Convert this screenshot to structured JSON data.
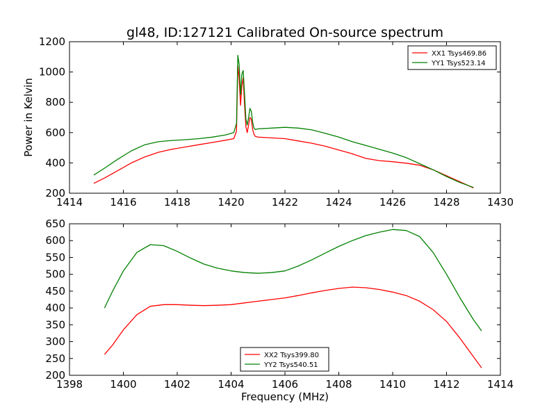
{
  "figure_title": "gl48, ID:127121 Calibrated On-source spectrum",
  "chart_data": [
    {
      "type": "line",
      "title": "gl48, ID:127121 Calibrated On-source spectrum",
      "xlabel": "",
      "ylabel": "Power in Kelvin",
      "xlim": [
        1414,
        1430
      ],
      "ylim": [
        200,
        1200
      ],
      "xticks": [
        1414,
        1416,
        1418,
        1420,
        1422,
        1424,
        1426,
        1428,
        1430
      ],
      "yticks": [
        200,
        400,
        600,
        800,
        1000,
        1200
      ],
      "legend_position": "top-right",
      "series": [
        {
          "name": "XX1 Tsys469.86",
          "color": "#ff0000",
          "x": [
            1414.9,
            1415.3,
            1415.8,
            1416.3,
            1416.8,
            1417.3,
            1417.8,
            1418.3,
            1418.8,
            1419.3,
            1419.8,
            1420.1,
            1420.2,
            1420.25,
            1420.3,
            1420.35,
            1420.4,
            1420.45,
            1420.5,
            1420.55,
            1420.6,
            1420.65,
            1420.7,
            1420.75,
            1420.8,
            1420.85,
            1420.9,
            1421.0,
            1421.5,
            1422.0,
            1422.5,
            1423.0,
            1423.5,
            1424.0,
            1424.5,
            1425.0,
            1425.5,
            1426.0,
            1426.5,
            1427.0,
            1427.5,
            1428.0,
            1428.5,
            1429.0
          ],
          "values": [
            265,
            300,
            350,
            400,
            440,
            470,
            490,
            505,
            520,
            535,
            550,
            560,
            610,
            1040,
            960,
            780,
            910,
            960,
            780,
            640,
            600,
            650,
            700,
            690,
            620,
            590,
            575,
            570,
            565,
            560,
            545,
            530,
            510,
            485,
            460,
            430,
            415,
            408,
            398,
            385,
            355,
            315,
            275,
            235
          ]
        },
        {
          "name": "YY1 Tsys523.14",
          "color": "#008000",
          "x": [
            1414.9,
            1415.3,
            1415.8,
            1416.3,
            1416.8,
            1417.3,
            1417.8,
            1418.3,
            1418.8,
            1419.3,
            1419.8,
            1420.1,
            1420.2,
            1420.25,
            1420.3,
            1420.35,
            1420.4,
            1420.45,
            1420.5,
            1420.55,
            1420.6,
            1420.65,
            1420.7,
            1420.75,
            1420.8,
            1420.85,
            1420.9,
            1421.0,
            1421.5,
            1422.0,
            1422.5,
            1423.0,
            1423.5,
            1424.0,
            1424.5,
            1425.0,
            1425.5,
            1426.0,
            1426.5,
            1427.0,
            1427.5,
            1428.0,
            1428.5,
            1429.0
          ],
          "values": [
            320,
            365,
            425,
            480,
            520,
            540,
            548,
            553,
            560,
            570,
            585,
            600,
            660,
            1110,
            1050,
            850,
            985,
            1010,
            850,
            690,
            650,
            700,
            760,
            740,
            670,
            630,
            620,
            625,
            630,
            635,
            630,
            618,
            595,
            570,
            540,
            515,
            490,
            465,
            435,
            395,
            355,
            310,
            270,
            238
          ]
        }
      ]
    },
    {
      "type": "line",
      "title": "",
      "xlabel": "Frequency (MHz)",
      "ylabel": "",
      "xlim": [
        1398,
        1414
      ],
      "ylim": [
        200,
        650
      ],
      "xticks": [
        1398,
        1400,
        1402,
        1404,
        1406,
        1408,
        1410,
        1412,
        1414
      ],
      "yticks": [
        200,
        250,
        300,
        350,
        400,
        450,
        500,
        550,
        600,
        650
      ],
      "legend_position": "lower-center",
      "series": [
        {
          "name": "XX2 Tsys399.80",
          "color": "#ff0000",
          "x": [
            1399.3,
            1399.6,
            1400.0,
            1400.5,
            1401.0,
            1401.5,
            1402.0,
            1402.5,
            1403.0,
            1403.5,
            1404.0,
            1404.5,
            1405.0,
            1405.5,
            1406.0,
            1406.5,
            1407.0,
            1407.5,
            1408.0,
            1408.5,
            1409.0,
            1409.5,
            1410.0,
            1410.5,
            1411.0,
            1411.5,
            1412.0,
            1412.5,
            1413.0,
            1413.3
          ],
          "values": [
            262,
            290,
            335,
            380,
            405,
            410,
            410,
            408,
            407,
            408,
            410,
            415,
            420,
            425,
            430,
            437,
            445,
            452,
            458,
            462,
            460,
            455,
            447,
            437,
            420,
            395,
            360,
            310,
            255,
            222
          ]
        },
        {
          "name": "YY2 Tsys540.51",
          "color": "#008000",
          "x": [
            1399.3,
            1399.6,
            1400.0,
            1400.5,
            1401.0,
            1401.5,
            1402.0,
            1402.5,
            1403.0,
            1403.5,
            1404.0,
            1404.5,
            1405.0,
            1405.5,
            1406.0,
            1406.5,
            1407.0,
            1407.5,
            1408.0,
            1408.5,
            1409.0,
            1409.5,
            1410.0,
            1410.5,
            1411.0,
            1411.5,
            1412.0,
            1412.5,
            1413.0,
            1413.3
          ],
          "values": [
            400,
            450,
            510,
            565,
            588,
            585,
            568,
            548,
            530,
            518,
            510,
            505,
            503,
            505,
            510,
            525,
            543,
            563,
            583,
            600,
            615,
            625,
            633,
            630,
            612,
            565,
            500,
            430,
            365,
            332
          ]
        }
      ]
    }
  ]
}
